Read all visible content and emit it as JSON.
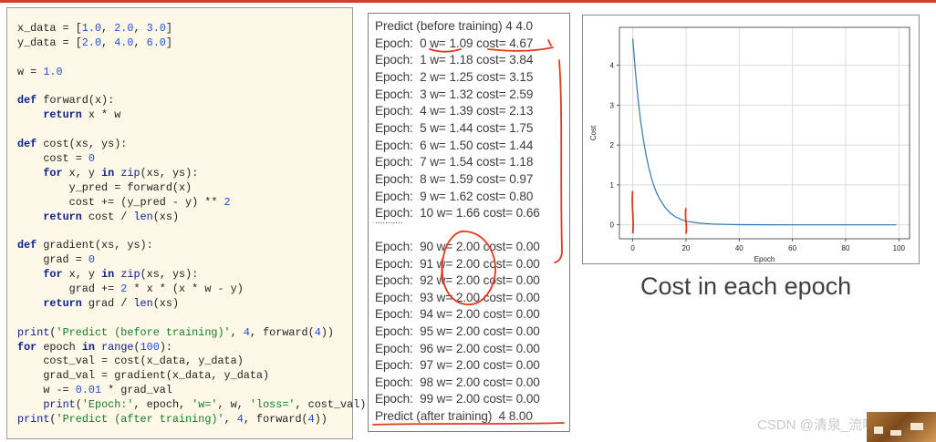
{
  "code": {
    "lines": [
      [
        [
          "t",
          "x_data = ["
        ],
        [
          "n",
          "1.0"
        ],
        [
          "t",
          ", "
        ],
        [
          "n",
          "2.0"
        ],
        [
          "t",
          ", "
        ],
        [
          "n",
          "3.0"
        ],
        [
          "t",
          "]"
        ]
      ],
      [
        [
          "t",
          "y_data = ["
        ],
        [
          "n",
          "2.0"
        ],
        [
          "t",
          ", "
        ],
        [
          "n",
          "4.0"
        ],
        [
          "t",
          ", "
        ],
        [
          "n",
          "6.0"
        ],
        [
          "t",
          "]"
        ]
      ],
      [],
      [
        [
          "t",
          "w = "
        ],
        [
          "n",
          "1.0"
        ]
      ],
      [],
      [
        [
          "k",
          "def"
        ],
        [
          "t",
          " forward(x):"
        ]
      ],
      [
        [
          "t",
          "    "
        ],
        [
          "k",
          "return"
        ],
        [
          "t",
          " x * w"
        ]
      ],
      [],
      [
        [
          "k",
          "def"
        ],
        [
          "t",
          " cost(xs, ys):"
        ]
      ],
      [
        [
          "t",
          "    cost = "
        ],
        [
          "n",
          "0"
        ]
      ],
      [
        [
          "t",
          "    "
        ],
        [
          "k",
          "for"
        ],
        [
          "t",
          " x, y "
        ],
        [
          "k",
          "in"
        ],
        [
          "t",
          " "
        ],
        [
          "b",
          "zip"
        ],
        [
          "t",
          "(xs, ys):"
        ]
      ],
      [
        [
          "t",
          "        y_pred = forward(x)"
        ]
      ],
      [
        [
          "t",
          "        cost += (y_pred - y) ** "
        ],
        [
          "n",
          "2"
        ]
      ],
      [
        [
          "t",
          "    "
        ],
        [
          "k",
          "return"
        ],
        [
          "t",
          " cost / "
        ],
        [
          "b",
          "len"
        ],
        [
          "t",
          "(xs)"
        ]
      ],
      [],
      [
        [
          "k",
          "def"
        ],
        [
          "t",
          " gradient(xs, ys):"
        ]
      ],
      [
        [
          "t",
          "    grad = "
        ],
        [
          "n",
          "0"
        ]
      ],
      [
        [
          "t",
          "    "
        ],
        [
          "k",
          "for"
        ],
        [
          "t",
          " x, y "
        ],
        [
          "k",
          "in"
        ],
        [
          "t",
          " "
        ],
        [
          "b",
          "zip"
        ],
        [
          "t",
          "(xs, ys):"
        ]
      ],
      [
        [
          "t",
          "        grad += "
        ],
        [
          "n",
          "2"
        ],
        [
          "t",
          " * x * (x * w - y)"
        ]
      ],
      [
        [
          "t",
          "    "
        ],
        [
          "k",
          "return"
        ],
        [
          "t",
          " grad / "
        ],
        [
          "b",
          "len"
        ],
        [
          "t",
          "(xs)"
        ]
      ],
      [],
      [
        [
          "b",
          "print"
        ],
        [
          "t",
          "("
        ],
        [
          "s",
          "'Predict (before training)'"
        ],
        [
          "t",
          ", "
        ],
        [
          "n",
          "4"
        ],
        [
          "t",
          ", forward("
        ],
        [
          "n",
          "4"
        ],
        [
          "t",
          "))"
        ]
      ],
      [
        [
          "k",
          "for"
        ],
        [
          "t",
          " epoch "
        ],
        [
          "k",
          "in"
        ],
        [
          "t",
          " "
        ],
        [
          "b",
          "range"
        ],
        [
          "t",
          "("
        ],
        [
          "n",
          "100"
        ],
        [
          "t",
          "):"
        ]
      ],
      [
        [
          "t",
          "    cost_val = cost(x_data, y_data)"
        ]
      ],
      [
        [
          "t",
          "    grad_val = gradient(x_data, y_data)"
        ]
      ],
      [
        [
          "t",
          "    w -= "
        ],
        [
          "n",
          "0.01"
        ],
        [
          "t",
          " * grad_val"
        ]
      ],
      [
        [
          "t",
          "    "
        ],
        [
          "b",
          "print"
        ],
        [
          "t",
          "("
        ],
        [
          "s",
          "'Epoch:'"
        ],
        [
          "t",
          ", epoch, "
        ],
        [
          "s",
          "'w='"
        ],
        [
          "t",
          ", w, "
        ],
        [
          "s",
          "'loss='"
        ],
        [
          "t",
          ", cost_val)"
        ]
      ],
      [
        [
          "b",
          "print"
        ],
        [
          "t",
          "("
        ],
        [
          "s",
          "'Predict (after training)'"
        ],
        [
          "t",
          ", "
        ],
        [
          "n",
          "4"
        ],
        [
          "t",
          ", forward("
        ],
        [
          "n",
          "4"
        ],
        [
          "t",
          "))"
        ]
      ]
    ]
  },
  "output": {
    "lines": [
      "Predict (before training) 4 4.0",
      "Epoch:  0 w= 1.09 cost= 4.67",
      "Epoch:  1 w= 1.18 cost= 3.84",
      "Epoch:  2 w= 1.25 cost= 3.15",
      "Epoch:  3 w= 1.32 cost= 2.59",
      "Epoch:  4 w= 1.39 cost= 2.13",
      "Epoch:  5 w= 1.44 cost= 1.75",
      "Epoch:  6 w= 1.50 cost= 1.44",
      "Epoch:  7 w= 1.54 cost= 1.18",
      "Epoch:  8 w= 1.59 cost= 0.97",
      "Epoch:  9 w= 1.62 cost= 0.80",
      "Epoch:  10 w= 1.66 cost= 0.66",
      "...........",
      "Epoch:  90 w= 2.00 cost= 0.00",
      "Epoch:  91 w= 2.00 cost= 0.00",
      "Epoch:  92 w= 2.00 cost= 0.00",
      "Epoch:  93 w= 2.00 cost= 0.00",
      "Epoch:  94 w= 2.00 cost= 0.00",
      "Epoch:  95 w= 2.00 cost= 0.00",
      "Epoch:  96 w= 2.00 cost= 0.00",
      "Epoch:  97 w= 2.00 cost= 0.00",
      "Epoch:  98 w= 2.00 cost= 0.00",
      "Epoch:  99 w= 2.00 cost= 0.00",
      "Predict (after training)  4 8.00"
    ],
    "annotation_color": "#e03a1e"
  },
  "chart_caption": "Cost in each epoch",
  "chart_data": {
    "type": "line",
    "xlabel": "Epoch",
    "ylabel": "Cost",
    "xlim": [
      -5,
      104
    ],
    "ylim": [
      -0.35,
      4.95
    ],
    "xticks": [
      0,
      20,
      40,
      60,
      80,
      100
    ],
    "yticks": [
      0,
      1,
      2,
      3,
      4
    ],
    "grid": true,
    "line_color": "#2f77b4",
    "series": [
      {
        "x": [
          0,
          1,
          2,
          3,
          4,
          5,
          6,
          7,
          8,
          9,
          10,
          12,
          14,
          16,
          18,
          20,
          25,
          30,
          35,
          40,
          50,
          60,
          70,
          80,
          90,
          99
        ],
        "y": [
          4.67,
          3.84,
          3.15,
          2.59,
          2.13,
          1.75,
          1.44,
          1.18,
          0.97,
          0.8,
          0.66,
          0.45,
          0.3,
          0.2,
          0.14,
          0.09,
          0.04,
          0.02,
          0.01,
          0.004,
          0.001,
          0.0,
          0.0,
          0.0,
          0.0,
          0.0
        ]
      }
    ]
  },
  "watermark": "CSDN @清泉_流响"
}
